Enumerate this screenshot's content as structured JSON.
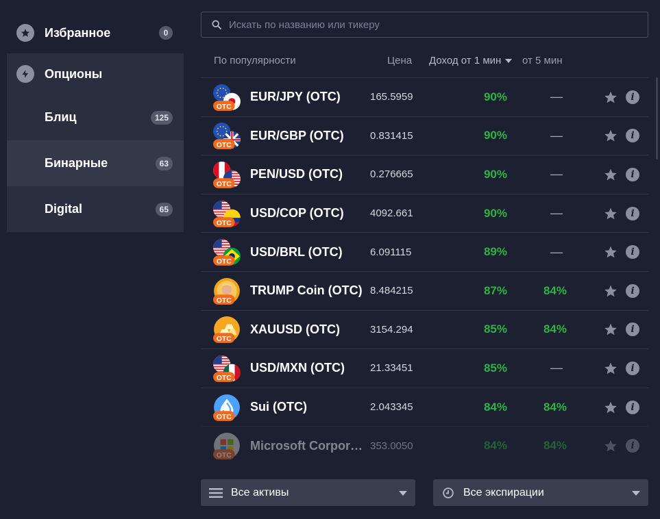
{
  "sidebar": {
    "favorites": {
      "label": "Избранное",
      "count": "0"
    },
    "options": {
      "label": "Опционы"
    },
    "items": [
      {
        "label": "Блиц",
        "count": "125"
      },
      {
        "label": "Бинарные",
        "count": "63",
        "active": true
      },
      {
        "label": "Digital",
        "count": "65"
      }
    ]
  },
  "search": {
    "placeholder": "Искать по названию или тикеру"
  },
  "table": {
    "headers": {
      "sort": "По популярности",
      "price": "Цена",
      "profit_1min": "Доход от 1 мин",
      "profit_5min": "от 5 мин"
    },
    "rows": [
      {
        "name": "EUR/JPY (OTC)",
        "price": "165.5959",
        "p1": "90%",
        "p5": "—",
        "icon": "eu-jp-flags"
      },
      {
        "name": "EUR/GBP (OTC)",
        "price": "0.831415",
        "p1": "90%",
        "p5": "—",
        "icon": "eu-gb-flags"
      },
      {
        "name": "PEN/USD (OTC)",
        "price": "0.276665",
        "p1": "90%",
        "p5": "—",
        "icon": "pe-us-flags"
      },
      {
        "name": "USD/COP (OTC)",
        "price": "4092.661",
        "p1": "90%",
        "p5": "—",
        "icon": "us-co-flags"
      },
      {
        "name": "USD/BRL (OTC)",
        "price": "6.091115",
        "p1": "89%",
        "p5": "—",
        "icon": "us-br-flags"
      },
      {
        "name": "TRUMP Coin (OTC)",
        "price": "8.484215",
        "p1": "87%",
        "p5": "84%",
        "icon": "trump-coin"
      },
      {
        "name": "XAUUSD (OTC)",
        "price": "3154.294",
        "p1": "85%",
        "p5": "84%",
        "icon": "gold-bars"
      },
      {
        "name": "USD/MXN (OTC)",
        "price": "21.33451",
        "p1": "85%",
        "p5": "—",
        "icon": "us-mx-flags"
      },
      {
        "name": "Sui (OTC)",
        "price": "2.043345",
        "p1": "84%",
        "p5": "84%",
        "icon": "sui-drop"
      },
      {
        "name": "Microsoft Corpor…",
        "price": "353.0050",
        "p1": "84%",
        "p5": "84%",
        "icon": "microsoft-logo"
      }
    ],
    "otc_tag": "OTC"
  },
  "footer": {
    "assets_label": "Все активы",
    "expirations_label": "Все экспирации"
  },
  "colors": {
    "background": "#1c2030",
    "sidebar_group": "#2a2e3e",
    "profit_green": "#2fb344",
    "otc_orange": "#f26b1d"
  }
}
